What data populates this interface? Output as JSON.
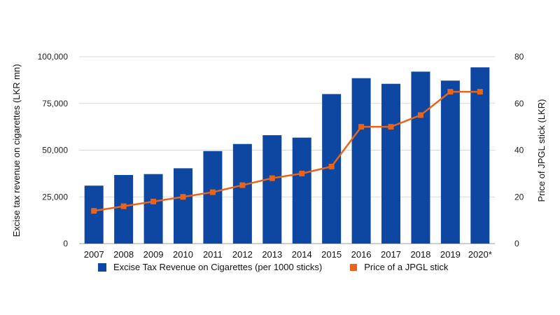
{
  "chart_data": {
    "type": "bar",
    "categories": [
      "2007",
      "2008",
      "2009",
      "2010",
      "2011",
      "2012",
      "2013",
      "2014",
      "2015",
      "2016",
      "2017",
      "2018",
      "2019",
      "2020*"
    ],
    "series": [
      {
        "name": "Excise Tax Revenue on Cigarettes (per 1000 sticks)",
        "type": "bar",
        "axis": "left",
        "values": [
          31000,
          36700,
          37200,
          40300,
          49500,
          53300,
          58000,
          56700,
          80000,
          88500,
          85500,
          92000,
          87200,
          94300
        ]
      },
      {
        "name": "Price of a JPGL stick",
        "type": "line",
        "axis": "right",
        "values": [
          14,
          16,
          18,
          20,
          22,
          25,
          28,
          30,
          33,
          50,
          50,
          55,
          65,
          65
        ]
      }
    ],
    "ylabel": "Excise tax revenue on cigarettes (LKR mn)",
    "y2label": "Price of JPGL stick (LKR)",
    "ylim": [
      0,
      100000
    ],
    "y2lim": [
      0,
      80
    ],
    "yticks": [
      "0",
      "25,000",
      "50,000",
      "75,000",
      "100,000"
    ],
    "y2ticks": [
      "0",
      "20",
      "40",
      "60",
      "80"
    ],
    "grid": true,
    "legend_position": "bottom",
    "colors": {
      "bar": "#0d47a1",
      "line": "#e8641b",
      "grid": "#d9d9d9"
    }
  }
}
